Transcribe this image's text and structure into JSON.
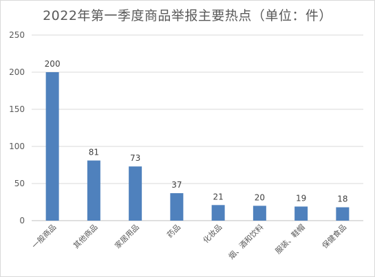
{
  "chart_data": {
    "type": "bar",
    "title": "2022年第一季度商品举报主要热点（单位：件）",
    "categories": [
      "一般商品",
      "其他商品",
      "家居用品",
      "药品",
      "化妆品",
      "烟、酒和饮料",
      "服装、鞋帽",
      "保健食品"
    ],
    "values": [
      200,
      81,
      73,
      37,
      21,
      20,
      19,
      18
    ],
    "y_ticks": [
      "0",
      "50",
      "100",
      "150",
      "200",
      "250"
    ],
    "ylim": [
      0,
      250
    ],
    "grid": true,
    "bar_color": "#4f81bd",
    "grid_color": "#d9d9d9"
  }
}
